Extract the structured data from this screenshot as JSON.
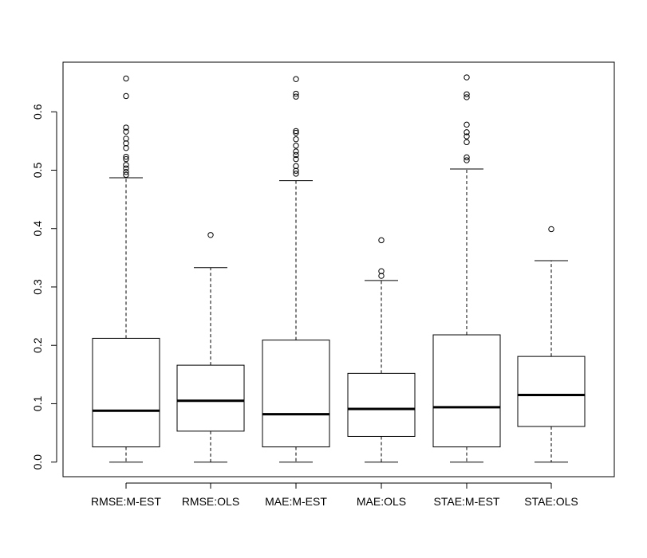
{
  "chart_data": {
    "type": "boxplot",
    "title": "",
    "xlabel": "",
    "ylabel": "",
    "ylim": [
      -0.025,
      0.685
    ],
    "yticks": [
      0.0,
      0.1,
      0.2,
      0.3,
      0.4,
      0.5,
      0.6
    ],
    "ytick_labels": [
      "0.0",
      "0.1",
      "0.2",
      "0.3",
      "0.4",
      "0.5",
      "0.6"
    ],
    "grid": false,
    "legend": "none",
    "categories": [
      "RMSE:M-EST",
      "RMSE:OLS",
      "MAE:M-EST",
      "MAE:OLS",
      "STAE:M-EST",
      "STAE:OLS"
    ],
    "boxes": [
      {
        "label": "RMSE:M-EST",
        "min": 0.0,
        "q1": 0.026,
        "median": 0.088,
        "q3": 0.212,
        "max": 0.487,
        "outliers": [
          0.492,
          0.497,
          0.503,
          0.509,
          0.519,
          0.523,
          0.538,
          0.546,
          0.554,
          0.566,
          0.573,
          0.627,
          0.657
        ]
      },
      {
        "label": "RMSE:OLS",
        "min": 0.0,
        "q1": 0.053,
        "median": 0.105,
        "q3": 0.166,
        "max": 0.333,
        "outliers": [
          0.389
        ]
      },
      {
        "label": "MAE:M-EST",
        "min": 0.0,
        "q1": 0.026,
        "median": 0.082,
        "q3": 0.209,
        "max": 0.482,
        "outliers": [
          0.494,
          0.499,
          0.507,
          0.519,
          0.526,
          0.532,
          0.542,
          0.553,
          0.564,
          0.567,
          0.626,
          0.631,
          0.656
        ]
      },
      {
        "label": "MAE:OLS",
        "min": 0.0,
        "q1": 0.044,
        "median": 0.091,
        "q3": 0.152,
        "max": 0.311,
        "outliers": [
          0.319,
          0.327,
          0.38
        ]
      },
      {
        "label": "STAE:M-EST",
        "min": 0.0,
        "q1": 0.026,
        "median": 0.094,
        "q3": 0.218,
        "max": 0.502,
        "outliers": [
          0.517,
          0.522,
          0.548,
          0.558,
          0.565,
          0.578,
          0.625,
          0.63,
          0.659
        ]
      },
      {
        "label": "STAE:OLS",
        "min": 0.0,
        "q1": 0.061,
        "median": 0.115,
        "q3": 0.181,
        "max": 0.345,
        "outliers": [
          0.399
        ]
      }
    ]
  }
}
